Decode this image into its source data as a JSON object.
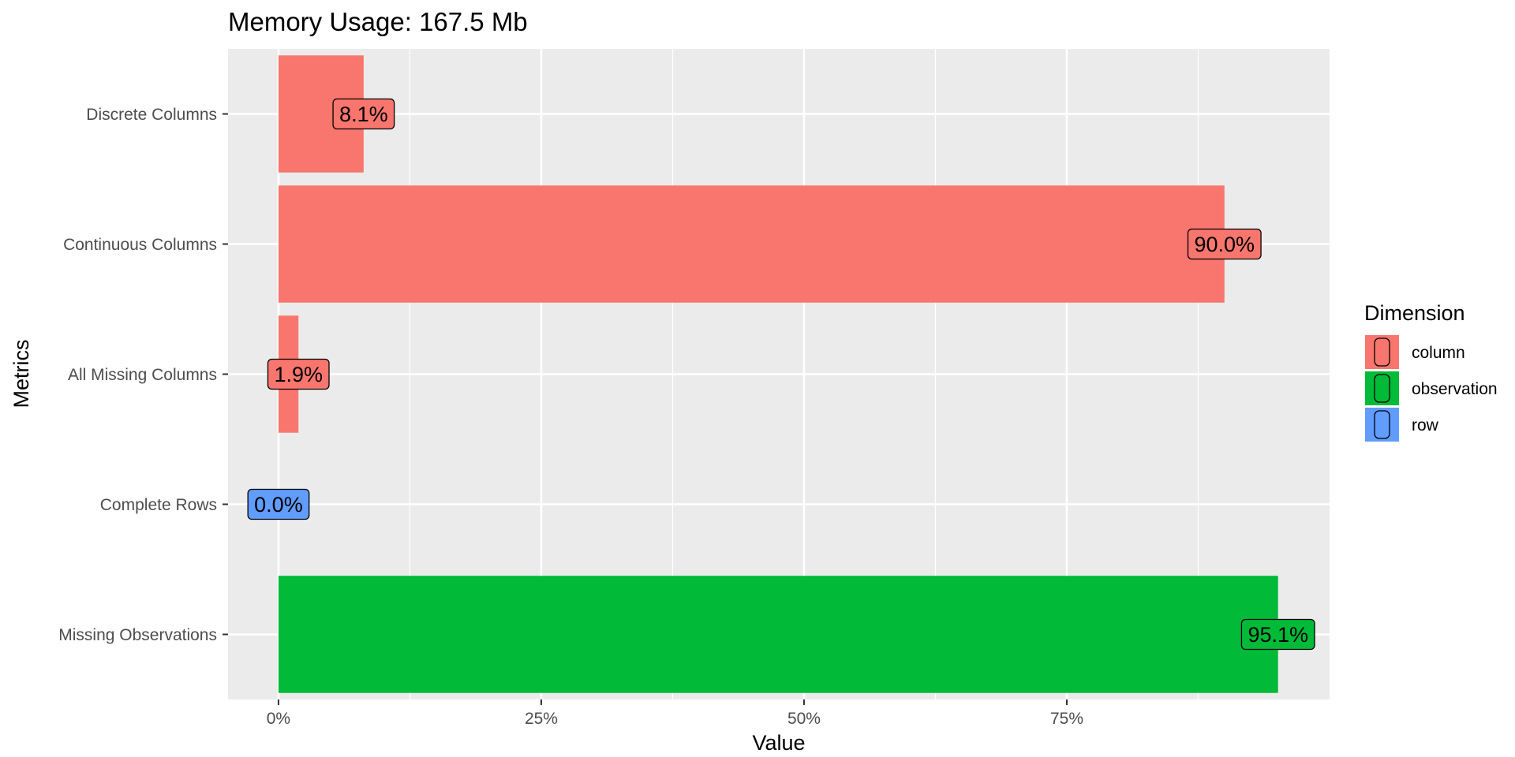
{
  "chart_data": {
    "type": "bar",
    "orientation": "horizontal",
    "title": "Memory Usage: 167.5 Mb",
    "xlabel": "Value",
    "ylabel": "Metrics",
    "categories": [
      "Discrete Columns",
      "Continuous Columns",
      "All Missing Columns",
      "Complete Rows",
      "Missing Observations"
    ],
    "values": [
      0.081,
      0.9,
      0.019,
      0.0,
      0.951
    ],
    "labels": [
      "8.1%",
      "90.0%",
      "1.9%",
      "0.0%",
      "95.1%"
    ],
    "dimension": [
      "column",
      "column",
      "column",
      "row",
      "observation"
    ],
    "xlim": [
      -0.048,
      1.0
    ],
    "xticks": [
      0,
      0.25,
      0.5,
      0.75
    ],
    "xtick_labels": [
      "0%",
      "25%",
      "50%",
      "75%"
    ],
    "grid": true,
    "legend": {
      "title": "Dimension",
      "position": "right",
      "entries": [
        "column",
        "observation",
        "row"
      ]
    },
    "colors": {
      "column": "#F8766D",
      "observation": "#00BA38",
      "row": "#619CFF",
      "panel_background": "#EBEBEB",
      "grid": "#FFFFFF"
    }
  }
}
